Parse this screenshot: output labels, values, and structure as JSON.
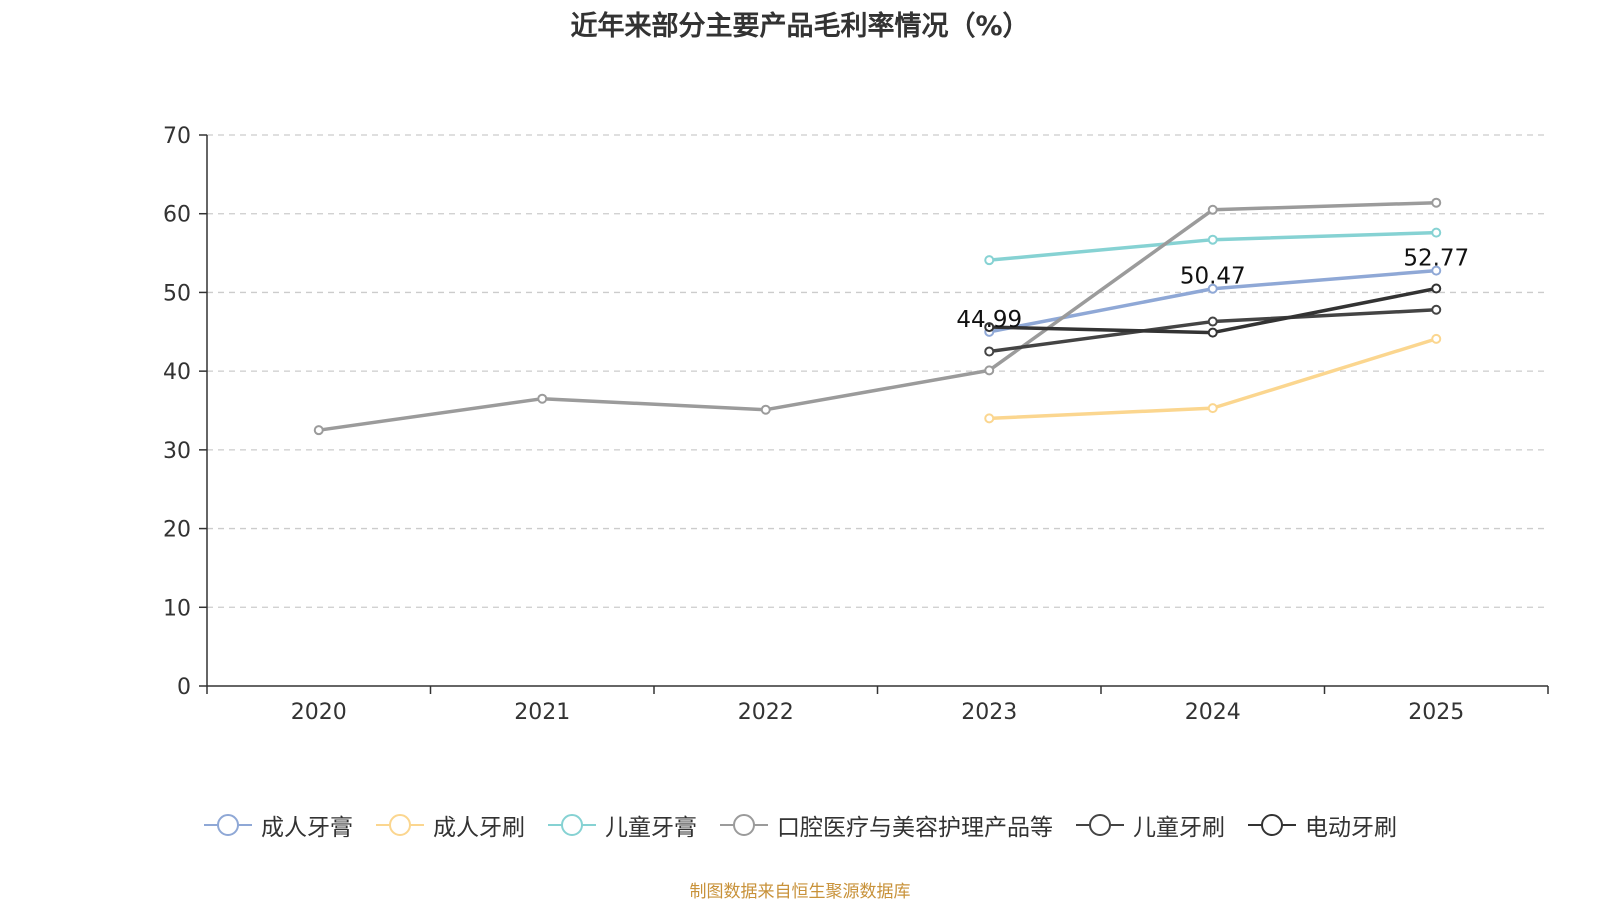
{
  "chart_data": {
    "type": "line",
    "title": "近年来部分主要产品毛利率情况（%）",
    "xlabel": "",
    "ylabel": "",
    "categories": [
      "2020",
      "2021",
      "2022",
      "2023",
      "2024",
      "2025"
    ],
    "ylim": [
      0,
      70
    ],
    "yticks": [
      0,
      10,
      20,
      30,
      40,
      50,
      60,
      70
    ],
    "grid": true,
    "legend_position": "bottom",
    "series": [
      {
        "name": "成人牙膏",
        "color": "#8fa8d6",
        "values": [
          null,
          null,
          null,
          44.99,
          50.47,
          52.77
        ],
        "labels": [
          null,
          null,
          null,
          "44.99",
          "50.47",
          "52.77"
        ]
      },
      {
        "name": "成人牙刷",
        "color": "#fbd68f",
        "values": [
          null,
          null,
          null,
          34.0,
          35.3,
          44.1
        ]
      },
      {
        "name": "儿童牙膏",
        "color": "#86d2d3",
        "values": [
          null,
          null,
          null,
          54.1,
          56.7,
          57.6
        ]
      },
      {
        "name": "口腔医疗与美容护理产品等",
        "color": "#9b9b9b",
        "values": [
          32.5,
          36.5,
          35.1,
          40.1,
          60.5,
          61.4
        ]
      },
      {
        "name": "儿童牙刷",
        "color": "#444444",
        "values": [
          null,
          null,
          null,
          42.5,
          46.3,
          47.8
        ]
      },
      {
        "name": "电动牙刷",
        "color": "#333333",
        "values": [
          null,
          null,
          null,
          45.6,
          44.9,
          50.5
        ]
      }
    ],
    "source": "制图数据来自恒生聚源数据库"
  }
}
